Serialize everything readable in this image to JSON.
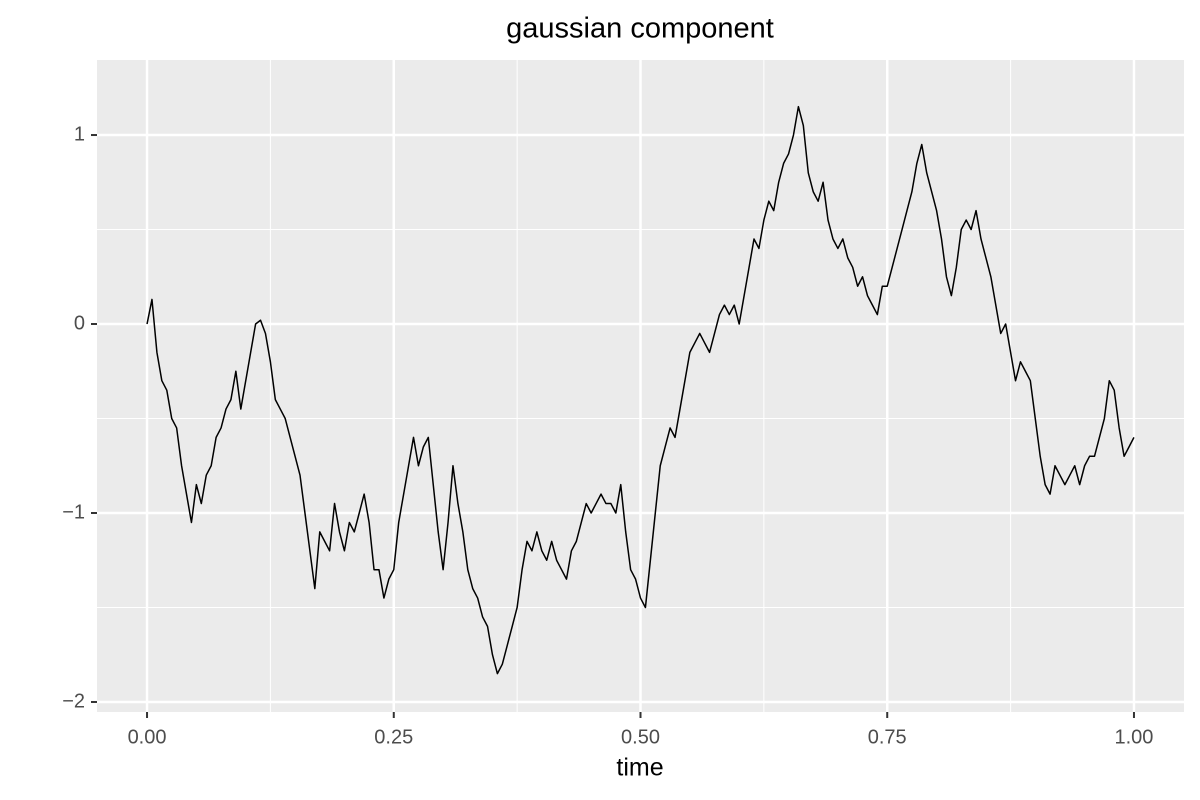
{
  "chart_data": {
    "type": "line",
    "title": "gaussian component",
    "x_label": "time",
    "x": [
      0,
      0.005,
      0.01,
      0.015,
      0.02,
      0.025,
      0.03,
      0.035,
      0.04,
      0.045,
      0.05,
      0.055,
      0.06,
      0.065,
      0.07,
      0.075,
      0.08,
      0.085,
      0.09,
      0.095,
      0.1,
      0.105,
      0.11,
      0.115,
      0.12,
      0.125,
      0.13,
      0.135,
      0.14,
      0.145,
      0.15,
      0.155,
      0.16,
      0.165,
      0.17,
      0.175,
      0.18,
      0.185,
      0.19,
      0.195,
      0.2,
      0.205,
      0.21,
      0.215,
      0.22,
      0.225,
      0.23,
      0.235,
      0.24,
      0.245,
      0.25,
      0.255,
      0.26,
      0.265,
      0.27,
      0.275,
      0.28,
      0.285,
      0.29,
      0.295,
      0.3,
      0.305,
      0.31,
      0.315,
      0.32,
      0.325,
      0.33,
      0.335,
      0.34,
      0.345,
      0.35,
      0.355,
      0.36,
      0.365,
      0.37,
      0.375,
      0.38,
      0.385,
      0.39,
      0.395,
      0.4,
      0.405,
      0.41,
      0.415,
      0.42,
      0.425,
      0.43,
      0.435,
      0.44,
      0.445,
      0.45,
      0.455,
      0.46,
      0.465,
      0.47,
      0.475,
      0.48,
      0.485,
      0.49,
      0.495,
      0.5,
      0.505,
      0.51,
      0.515,
      0.52,
      0.525,
      0.53,
      0.535,
      0.54,
      0.545,
      0.55,
      0.555,
      0.56,
      0.565,
      0.57,
      0.575,
      0.58,
      0.585,
      0.59,
      0.595,
      0.6,
      0.605,
      0.61,
      0.615,
      0.62,
      0.625,
      0.63,
      0.635,
      0.64,
      0.645,
      0.65,
      0.655,
      0.66,
      0.665,
      0.67,
      0.675,
      0.68,
      0.685,
      0.69,
      0.695,
      0.7,
      0.705,
      0.71,
      0.715,
      0.72,
      0.725,
      0.73,
      0.735,
      0.74,
      0.745,
      0.75,
      0.755,
      0.76,
      0.765,
      0.77,
      0.775,
      0.78,
      0.785,
      0.79,
      0.795,
      0.8,
      0.805,
      0.81,
      0.815,
      0.82,
      0.825,
      0.83,
      0.835,
      0.84,
      0.845,
      0.85,
      0.855,
      0.86,
      0.865,
      0.87,
      0.875,
      0.88,
      0.885,
      0.89,
      0.895,
      0.9,
      0.905,
      0.91,
      0.915,
      0.92,
      0.925,
      0.93,
      0.935,
      0.94,
      0.945,
      0.95,
      0.955,
      0.96,
      0.965,
      0.97,
      0.975,
      0.98,
      0.985,
      0.99,
      0.995,
      1
    ],
    "series": [
      {
        "color": "#000000",
        "values": [
          0,
          0.13,
          -0.15,
          -0.3,
          -0.35,
          -0.5,
          -0.55,
          -0.75,
          -0.9,
          -1.05,
          -0.85,
          -0.95,
          -0.8,
          -0.75,
          -0.6,
          -0.55,
          -0.45,
          -0.4,
          -0.25,
          -0.45,
          -0.3,
          -0.15,
          0,
          0.02,
          -0.05,
          -0.2,
          -0.4,
          -0.45,
          -0.5,
          -0.6,
          -0.7,
          -0.8,
          -1,
          -1.2,
          -1.4,
          -1.1,
          -1.15,
          -1.2,
          -0.95,
          -1.1,
          -1.2,
          -1.05,
          -1.1,
          -1,
          -0.9,
          -1.05,
          -1.3,
          -1.3,
          -1.45,
          -1.35,
          -1.3,
          -1.05,
          -0.9,
          -0.75,
          -0.6,
          -0.75,
          -0.65,
          -0.6,
          -0.85,
          -1.1,
          -1.3,
          -1.05,
          -0.75,
          -0.95,
          -1.1,
          -1.3,
          -1.4,
          -1.45,
          -1.55,
          -1.6,
          -1.75,
          -1.85,
          -1.8,
          -1.7,
          -1.6,
          -1.5,
          -1.3,
          -1.15,
          -1.2,
          -1.1,
          -1.2,
          -1.25,
          -1.15,
          -1.25,
          -1.3,
          -1.35,
          -1.2,
          -1.15,
          -1.05,
          -0.95,
          -1,
          -0.95,
          -0.9,
          -0.95,
          -0.95,
          -1,
          -0.85,
          -1.1,
          -1.3,
          -1.35,
          -1.45,
          -1.5,
          -1.25,
          -1,
          -0.75,
          -0.65,
          -0.55,
          -0.6,
          -0.45,
          -0.3,
          -0.15,
          -0.1,
          -0.05,
          -0.1,
          -0.15,
          -0.05,
          0.05,
          0.1,
          0.05,
          0.1,
          0,
          0.15,
          0.3,
          0.45,
          0.4,
          0.55,
          0.65,
          0.6,
          0.75,
          0.85,
          0.9,
          1,
          1.15,
          1.05,
          0.8,
          0.7,
          0.65,
          0.75,
          0.55,
          0.45,
          0.4,
          0.45,
          0.35,
          0.3,
          0.2,
          0.25,
          0.15,
          0.1,
          0.05,
          0.2,
          0.2,
          0.3,
          0.4,
          0.5,
          0.6,
          0.7,
          0.85,
          0.95,
          0.8,
          0.7,
          0.6,
          0.45,
          0.25,
          0.15,
          0.3,
          0.5,
          0.55,
          0.5,
          0.6,
          0.45,
          0.35,
          0.25,
          0.1,
          -0.05,
          0,
          -0.15,
          -0.3,
          -0.2,
          -0.25,
          -0.3,
          -0.5,
          -0.7,
          -0.85,
          -0.9,
          -0.75,
          -0.8,
          -0.85,
          -0.8,
          -0.75,
          -0.85,
          -0.75,
          -0.7,
          -0.7,
          -0.6,
          -0.5,
          -0.3,
          -0.35,
          -0.55,
          -0.7,
          -0.65,
          -0.6
        ]
      }
    ],
    "xlim": [
      -0.0507,
      1.0507
    ],
    "ylim": [
      -2.053,
      1.397
    ],
    "xticks": [
      {
        "value": 0,
        "label": "0.00"
      },
      {
        "value": 0.25,
        "label": "0.25"
      },
      {
        "value": 0.5,
        "label": "0.50"
      },
      {
        "value": 0.75,
        "label": "0.75"
      },
      {
        "value": 1,
        "label": "1.00"
      }
    ],
    "yticks": [
      {
        "value": -2,
        "label": "−2"
      },
      {
        "value": -1,
        "label": "−1"
      },
      0,
      1
    ],
    "x_minor_breaks": [
      0.125,
      0.375,
      0.625,
      0.875
    ],
    "y_minor_breaks": [
      -1.5,
      -0.5,
      0.5
    ],
    "grid": true,
    "panel_color": "#ebebeb"
  }
}
